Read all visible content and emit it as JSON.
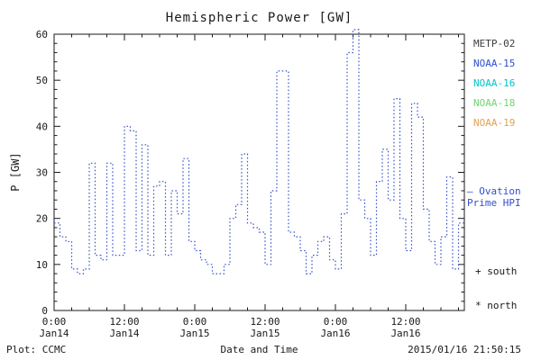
{
  "chart_data": {
    "type": "line",
    "title": "Hemispheric Power [GW]",
    "xlabel": "Date and Time",
    "ylabel": "P [GW]",
    "ylim": [
      0,
      60
    ],
    "y_ticks": [
      0,
      10,
      20,
      30,
      40,
      50,
      60
    ],
    "y_minor_step": 2,
    "x_range_hours": [
      0,
      70
    ],
    "x_minor_step": 3,
    "x_major_ticks": [
      {
        "hour": 0,
        "time": "0:00",
        "date": "Jan14"
      },
      {
        "hour": 12,
        "time": "12:00",
        "date": "Jan14"
      },
      {
        "hour": 24,
        "time": "0:00",
        "date": "Jan15"
      },
      {
        "hour": 36,
        "time": "12:00",
        "date": "Jan15"
      },
      {
        "hour": 48,
        "time": "0:00",
        "date": "Jan16"
      },
      {
        "hour": 60,
        "time": "12:00",
        "date": "Jan16"
      }
    ],
    "grid": false,
    "legend_position": "right-outside",
    "series": [
      {
        "name": "Ovation Prime HPI",
        "color": "#3350c8",
        "line_style": "dotted-step",
        "start_hour": 0,
        "step_hours": 1,
        "values": [
          19,
          16,
          15,
          9,
          8,
          9,
          32,
          12,
          11,
          32,
          12,
          12,
          40,
          39,
          13,
          36,
          12,
          27,
          28,
          12,
          26,
          21,
          33,
          15,
          13,
          11,
          10,
          8,
          8,
          10,
          20,
          23,
          34,
          19,
          18,
          17,
          10,
          26,
          52,
          52,
          17,
          16,
          13,
          8,
          12,
          15,
          16,
          11,
          9,
          21,
          56,
          61,
          24,
          20,
          12,
          28,
          35,
          24,
          46,
          20,
          13,
          45,
          42,
          22,
          15,
          10,
          16,
          29,
          9,
          19
        ]
      }
    ]
  },
  "legend": {
    "satellites": [
      {
        "label": "METP-02",
        "color": "#3c3c3c"
      },
      {
        "label": "NOAA-15",
        "color": "#2f4fd0"
      },
      {
        "label": "NOAA-16",
        "color": "#00c4cc"
      },
      {
        "label": "NOAA-18",
        "color": "#6fd66f"
      },
      {
        "label": "NOAA-19",
        "color": "#e4a14f"
      }
    ],
    "ovation": {
      "line1": "— Ovation",
      "line2": "Prime HPI",
      "color": "#2f4fd0"
    },
    "markers": {
      "south": "+ south",
      "north": "* north",
      "color": "#1a1a1a"
    }
  },
  "footer": {
    "credit": "Plot: CCMC",
    "timestamp": "2015/01/16 21:50:15"
  }
}
